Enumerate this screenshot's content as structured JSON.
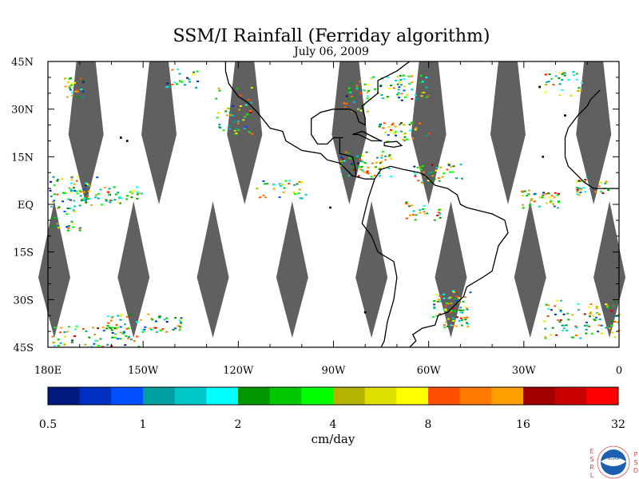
{
  "title": "SSM/I Rainfall (Ferriday algorithm)",
  "subtitle": "July 06, 2009",
  "map": {
    "lon_range": [
      -180,
      0
    ],
    "lat_range": [
      -45,
      45
    ],
    "lat_labels": [
      "45N",
      "30N",
      "15N",
      "EQ",
      "15S",
      "30S",
      "45S"
    ],
    "lon_labels": [
      "180E",
      "150W",
      "120W",
      "90W",
      "60W",
      "30W",
      "0"
    ],
    "coastline_color": "#000000",
    "no_data_color": "#606060",
    "swath_gap_centers_lon_north": [
      -168,
      -145,
      -118,
      -85,
      -60,
      -35,
      -8
    ],
    "swath_gap_centers_lon_south": [
      -178,
      -153,
      -128,
      -103,
      -78,
      -53,
      -28,
      -3
    ]
  },
  "colorbar": {
    "unit_label": "cm/day",
    "tick_labels": [
      "0.5",
      "1",
      "2",
      "4",
      "8",
      "16",
      "32"
    ],
    "colors": [
      "#001a80",
      "#0030c0",
      "#0050ff",
      "#00a0a0",
      "#00c8c8",
      "#00ffff",
      "#009600",
      "#00c800",
      "#00ff00",
      "#b4b400",
      "#e0e000",
      "#ffff00",
      "#ff5000",
      "#ff7800",
      "#ffa000",
      "#a00000",
      "#c80000",
      "#ff0000"
    ]
  },
  "logo": {
    "left_letters": [
      "E",
      "S",
      "R",
      "L"
    ],
    "center_text": "NOAA",
    "right_letters": [
      "P",
      "S",
      "D"
    ]
  }
}
